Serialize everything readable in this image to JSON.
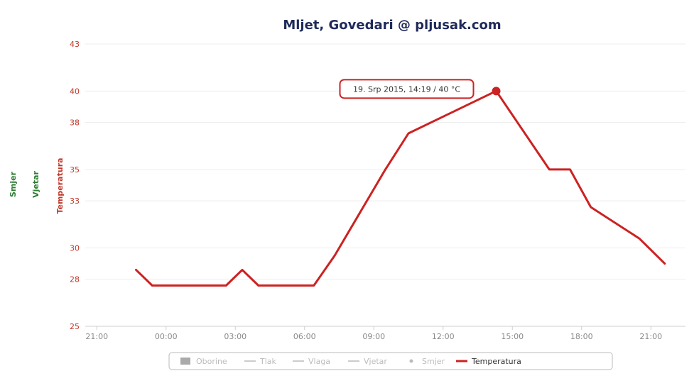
{
  "chart_data": {
    "type": "line",
    "title": "Mljet, Govedari @ pljusak.com",
    "ylabel": "Temperatura",
    "extra_axis_titles": [
      "Smjer",
      "Vjetar"
    ],
    "ylim": [
      25,
      43
    ],
    "yticks": [
      25,
      28,
      30,
      33,
      35,
      38,
      40,
      43
    ],
    "x_tick_labels": [
      "21:00",
      "00:00",
      "03:00",
      "06:00",
      "09:00",
      "12:00",
      "15:00",
      "18:00",
      "21:00"
    ],
    "x_tick_hours": [
      -3,
      0,
      3,
      6,
      9,
      12,
      15,
      18,
      21
    ],
    "xlim": [
      -3.5,
      22.5
    ],
    "series": [
      {
        "name": "Temperatura",
        "color": "#cc2222",
        "points": [
          {
            "x": -1.3,
            "y": 28.6
          },
          {
            "x": -0.6,
            "y": 27.6
          },
          {
            "x": 0.3,
            "y": 27.6
          },
          {
            "x": 1.7,
            "y": 27.6
          },
          {
            "x": 2.6,
            "y": 27.6
          },
          {
            "x": 3.3,
            "y": 28.6
          },
          {
            "x": 4.0,
            "y": 27.6
          },
          {
            "x": 5.6,
            "y": 27.6
          },
          {
            "x": 6.4,
            "y": 27.6
          },
          {
            "x": 7.3,
            "y": 29.5
          },
          {
            "x": 9.5,
            "y": 35.0
          },
          {
            "x": 10.5,
            "y": 37.3
          },
          {
            "x": 14.3,
            "y": 40.0
          },
          {
            "x": 16.6,
            "y": 35.0
          },
          {
            "x": 17.5,
            "y": 35.0
          },
          {
            "x": 18.4,
            "y": 32.6
          },
          {
            "x": 20.5,
            "y": 30.6
          },
          {
            "x": 21.6,
            "y": 29.0
          }
        ]
      }
    ],
    "highlight_point_index": 12,
    "tooltip": "19. Srp 2015, 14:19 / 40 °C",
    "legend": [
      {
        "label": "Oborine",
        "symbol": "box",
        "active": false
      },
      {
        "label": "Tlak",
        "symbol": "line",
        "active": false
      },
      {
        "label": "Vlaga",
        "symbol": "line",
        "active": false
      },
      {
        "label": "Vjetar",
        "symbol": "line",
        "active": false
      },
      {
        "label": "Smjer",
        "symbol": "dot",
        "active": false
      },
      {
        "label": "Temperatura",
        "symbol": "line",
        "active": true
      }
    ],
    "legend_placement": "bottom-center",
    "grid": true,
    "colors": {
      "title": "#1f2a5a",
      "y_tick": "#c0392b",
      "x_tick": "#8a8a8a",
      "grid": "#eeeeee",
      "axis_line": "#cfcfcf",
      "secondary_axis_title": "#2e7d32",
      "inactive_legend": "#bbbbbb",
      "active_legend": "#333333"
    }
  }
}
